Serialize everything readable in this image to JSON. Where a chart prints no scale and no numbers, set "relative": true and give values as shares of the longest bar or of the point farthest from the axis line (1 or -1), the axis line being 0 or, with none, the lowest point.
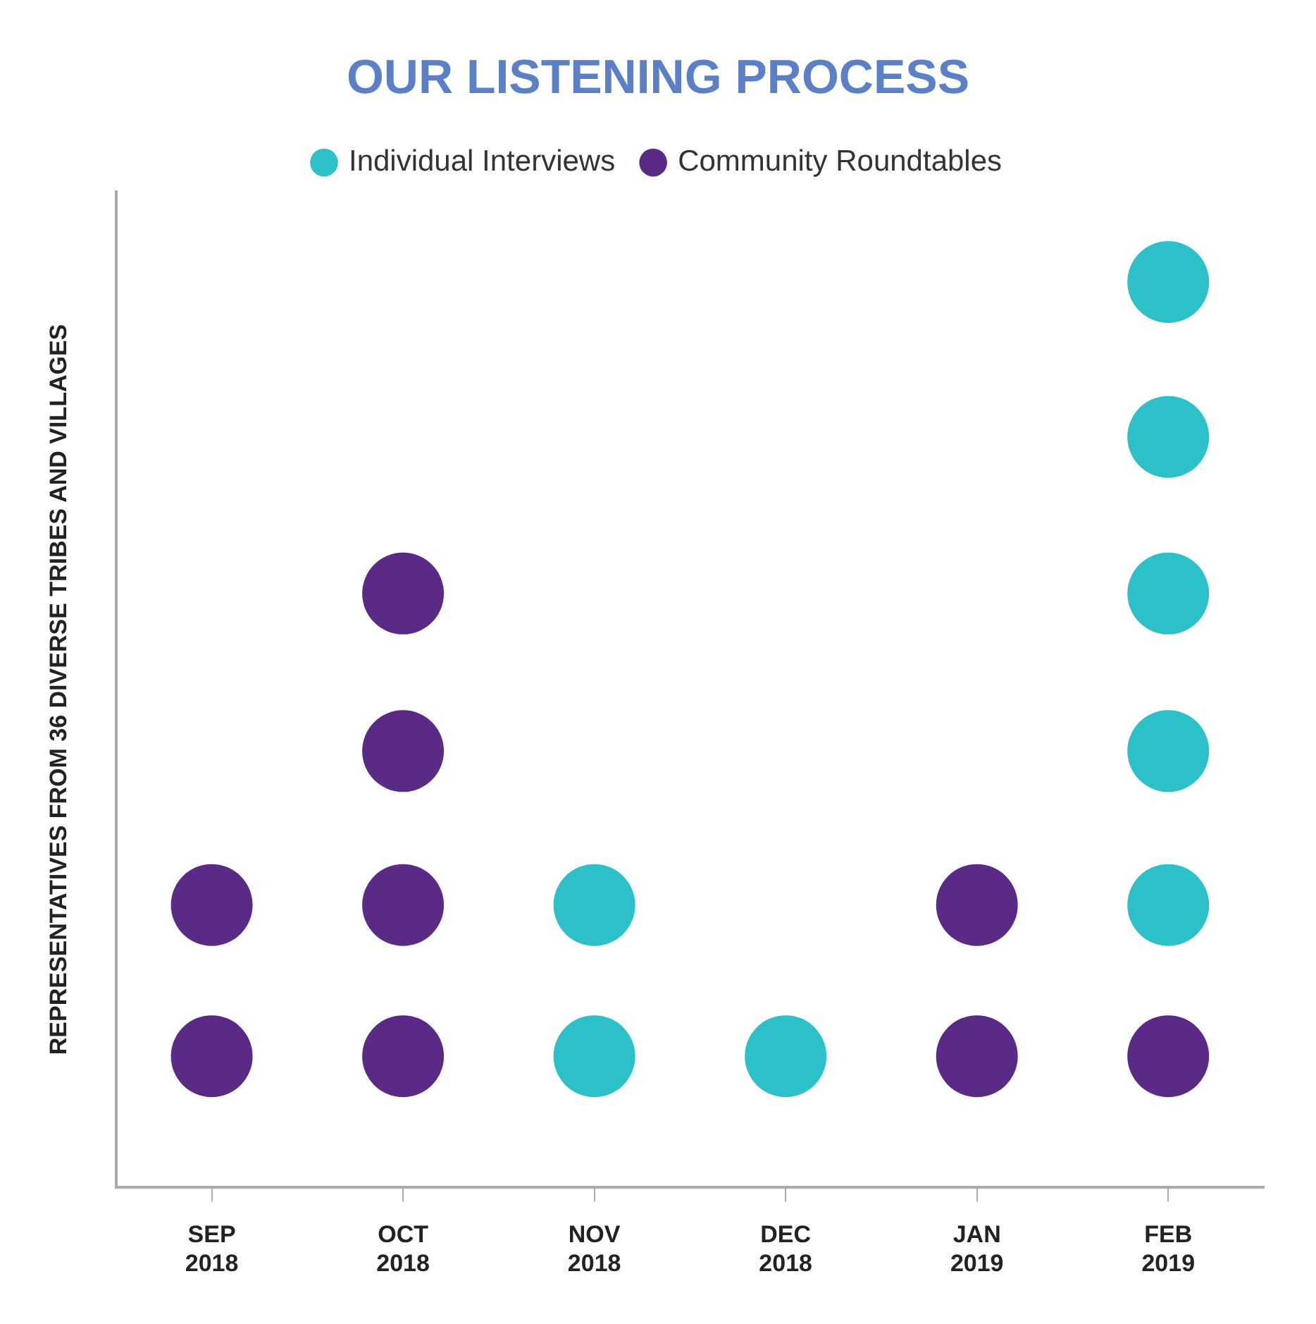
{
  "chart_data": {
    "type": "scatter",
    "title": "OUR LISTENING PROCESS",
    "ylabel": "REPRESENTATIVES FROM 36 DIVERSE TRIBES AND VILLAGES",
    "categories": [
      "SEP 2018",
      "OCT 2018",
      "NOV 2018",
      "DEC 2018",
      "JAN 2019",
      "FEB 2019"
    ],
    "relative": true,
    "legend": "top",
    "grid": false,
    "marker": "circle",
    "series": [
      {
        "name": "Individual Interviews",
        "color": "#2cc0c9",
        "x": [
          "NOV 2018",
          "NOV 2018",
          "DEC 2018",
          "FEB 2019",
          "FEB 2019",
          "FEB 2019",
          "FEB 2019",
          "FEB 2019"
        ],
        "values": [
          0.145,
          0.312,
          0.145,
          0.312,
          0.482,
          0.656,
          0.829,
          1
        ]
      },
      {
        "name": "Community Roundtables",
        "color": "#5a2a86",
        "x": [
          "SEP 2018",
          "SEP 2018",
          "OCT 2018",
          "OCT 2018",
          "OCT 2018",
          "OCT 2018",
          "JAN 2019",
          "JAN 2019",
          "FEB 2019"
        ],
        "values": [
          0.145,
          0.312,
          0.145,
          0.312,
          0.482,
          0.656,
          0.145,
          0.312,
          0.145
        ]
      }
    ]
  }
}
